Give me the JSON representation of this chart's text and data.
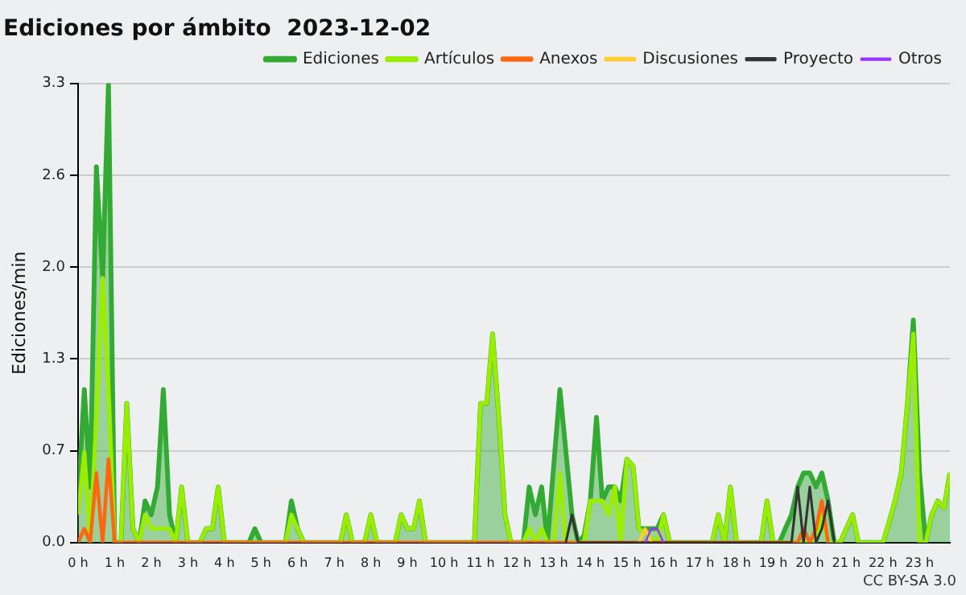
{
  "chart_data": {
    "type": "line",
    "title": "Ediciones por ámbito  2023-12-02",
    "ylabel": "Ediciones/min",
    "xlim": [
      0,
      23.83
    ],
    "xticks": [
      {
        "value": 0,
        "label": "0 h"
      },
      {
        "value": 1,
        "label": "1 h"
      },
      {
        "value": 2,
        "label": "2 h"
      },
      {
        "value": 3,
        "label": "3 h"
      },
      {
        "value": 4,
        "label": "4 h"
      },
      {
        "value": 5,
        "label": "5 h"
      },
      {
        "value": 6,
        "label": "6 h"
      },
      {
        "value": 7,
        "label": "7 h"
      },
      {
        "value": 8,
        "label": "8 h"
      },
      {
        "value": 9,
        "label": "9 h"
      },
      {
        "value": 10,
        "label": "10 h"
      },
      {
        "value": 11,
        "label": "11 h"
      },
      {
        "value": 12,
        "label": "12 h"
      },
      {
        "value": 13,
        "label": "13 h"
      },
      {
        "value": 14,
        "label": "14 h"
      },
      {
        "value": 15,
        "label": "15 h"
      },
      {
        "value": 16,
        "label": "16 h"
      },
      {
        "value": 17,
        "label": "17 h"
      },
      {
        "value": 18,
        "label": "18 h"
      },
      {
        "value": 19,
        "label": "19 h"
      },
      {
        "value": 20,
        "label": "20 h"
      },
      {
        "value": 21,
        "label": "21 h"
      },
      {
        "value": 22,
        "label": "22 h"
      },
      {
        "value": 23,
        "label": "23 h"
      }
    ],
    "ylim": [
      0,
      3.3
    ],
    "yticks": [
      {
        "value": 0,
        "label": "0.0"
      },
      {
        "value": 0.66,
        "label": "0.7"
      },
      {
        "value": 1.32,
        "label": "1.3"
      },
      {
        "value": 1.98,
        "label": "2.0"
      },
      {
        "value": 2.64,
        "label": "2.6"
      },
      3.3
    ],
    "grid": "y",
    "legend": "top right",
    "marker": "none",
    "line_style": "solid",
    "annotations": [
      "CC BY-SA 3.0"
    ],
    "series": [
      {
        "name": "Ediciones",
        "type": "area",
        "color": "#33aa33",
        "x": [
          0,
          0.17,
          0.33,
          0.5,
          0.67,
          0.83,
          1.0,
          1.17,
          1.33,
          1.5,
          1.67,
          1.83,
          2.0,
          2.17,
          2.33,
          2.5,
          2.67,
          2.83,
          3.0,
          3.33,
          3.5,
          3.67,
          3.83,
          4.0,
          4.67,
          4.83,
          5.0,
          5.67,
          5.83,
          6.0,
          6.17,
          7.17,
          7.33,
          7.5,
          7.83,
          8.0,
          8.17,
          8.67,
          8.83,
          9.0,
          9.17,
          9.33,
          9.5,
          10.83,
          11.0,
          11.17,
          11.33,
          11.5,
          11.67,
          11.83,
          12.17,
          12.33,
          12.5,
          12.67,
          12.83,
          13.17,
          13.5,
          13.67,
          13.83,
          14.0,
          14.17,
          14.33,
          14.5,
          14.67,
          14.83,
          15.0,
          15.17,
          15.33,
          15.5,
          15.67,
          15.83,
          16.0,
          16.17,
          17.33,
          17.5,
          17.67,
          17.83,
          18.0,
          18.67,
          18.83,
          19.0,
          19.17,
          19.33,
          19.5,
          19.67,
          19.83,
          20.0,
          20.17,
          20.33,
          20.5,
          20.67,
          20.83,
          21.0,
          21.17,
          21.33,
          22.0,
          22.17,
          22.33,
          22.5,
          22.67,
          22.83,
          23.0,
          23.17,
          23.33,
          23.5,
          23.67,
          23.83
        ],
        "values": [
          0.3,
          1.1,
          0.4,
          2.7,
          1.9,
          3.3,
          0,
          0,
          1.0,
          0.1,
          0,
          0.3,
          0.2,
          0.4,
          1.1,
          0.2,
          0,
          0.4,
          0,
          0,
          0.1,
          0.1,
          0.4,
          0,
          0,
          0.1,
          0,
          0,
          0.3,
          0.1,
          0,
          0,
          0.2,
          0,
          0,
          0.2,
          0,
          0,
          0.2,
          0.1,
          0.1,
          0.3,
          0,
          0,
          1.0,
          1.0,
          1.5,
          0.9,
          0.2,
          0,
          0,
          0.4,
          0.2,
          0.4,
          0,
          1.1,
          0.2,
          0,
          0.05,
          0.3,
          0.9,
          0.3,
          0.4,
          0.4,
          0.3,
          0.6,
          0.55,
          0.1,
          0.1,
          0.1,
          0.1,
          0.2,
          0,
          0,
          0.2,
          0,
          0.4,
          0,
          0,
          0.3,
          0,
          0,
          0.1,
          0.2,
          0.4,
          0.5,
          0.5,
          0.4,
          0.5,
          0.3,
          0,
          0,
          0.1,
          0.2,
          0,
          0,
          0.15,
          0.3,
          0.5,
          1.0,
          1.6,
          0.5,
          0,
          0.2,
          0.3,
          0.25,
          0.5
        ]
      },
      {
        "name": "Artículos",
        "color": "#99ee00",
        "x": [
          0,
          0.17,
          0.33,
          0.5,
          0.67,
          0.83,
          1.0,
          1.17,
          1.33,
          1.5,
          1.67,
          1.83,
          2.0,
          2.33,
          2.5,
          2.67,
          2.83,
          3.0,
          3.33,
          3.5,
          3.67,
          3.83,
          4.0,
          5.67,
          5.83,
          6.0,
          6.17,
          7.17,
          7.33,
          7.5,
          7.83,
          8.0,
          8.17,
          8.67,
          8.83,
          9.0,
          9.17,
          9.33,
          9.5,
          10.83,
          11.0,
          11.17,
          11.33,
          11.5,
          11.67,
          11.83,
          12.17,
          12.33,
          12.5,
          12.67,
          12.83,
          13.0,
          13.17,
          13.33,
          13.83,
          14.0,
          14.17,
          14.33,
          14.5,
          14.67,
          14.83,
          15.0,
          15.17,
          15.33,
          15.83,
          16.0,
          16.17,
          17.33,
          17.5,
          17.67,
          17.83,
          18.0,
          18.67,
          18.83,
          19.0,
          20.17,
          20.33,
          20.5,
          20.83,
          21.0,
          21.17,
          21.33,
          22.0,
          22.17,
          22.33,
          22.5,
          22.67,
          22.83,
          23.0,
          23.17,
          23.33,
          23.5,
          23.67,
          23.83
        ],
        "values": [
          0.2,
          0.65,
          0,
          0.9,
          1.9,
          1.1,
          0,
          0,
          1.0,
          0.1,
          0,
          0.2,
          0.1,
          0.1,
          0.1,
          0,
          0.4,
          0,
          0,
          0.1,
          0.1,
          0.4,
          0,
          0,
          0.2,
          0.1,
          0,
          0,
          0.2,
          0,
          0,
          0.2,
          0,
          0,
          0.2,
          0.1,
          0.1,
          0.3,
          0,
          0,
          1.0,
          1.0,
          1.5,
          0.9,
          0.2,
          0,
          0,
          0.1,
          0,
          0.1,
          0,
          0,
          0.5,
          0,
          0,
          0.3,
          0.3,
          0.3,
          0.2,
          0.4,
          0,
          0.6,
          0.55,
          0.1,
          0,
          0.2,
          0,
          0,
          0.2,
          0,
          0.4,
          0,
          0,
          0.3,
          0,
          0,
          0.2,
          0,
          0,
          0.1,
          0.2,
          0,
          0,
          0.15,
          0.3,
          0.5,
          1.0,
          1.5,
          0,
          0,
          0.2,
          0.3,
          0.25,
          0.5
        ]
      },
      {
        "name": "Anexos",
        "color": "#ff6611",
        "x": [
          0,
          0.17,
          0.33,
          0.5,
          0.67,
          0.83,
          1.0,
          19.67,
          19.83,
          20.0,
          20.17,
          20.33,
          20.5
        ],
        "values": [
          0,
          0.1,
          0,
          0.5,
          0,
          0.6,
          0,
          0,
          0.1,
          0,
          0.1,
          0.3,
          0
        ]
      },
      {
        "name": "Discusiones",
        "color": "#ffcc33",
        "x": [
          15.33,
          15.5,
          15.67
        ],
        "values": [
          0,
          0.1,
          0
        ]
      },
      {
        "name": "Proyecto",
        "color": "#333333",
        "x": [
          13.33,
          13.5,
          13.67,
          19.5,
          19.67,
          19.83,
          20.0,
          20.17,
          20.33,
          20.5,
          20.67
        ],
        "values": [
          0,
          0.2,
          0,
          0,
          0.4,
          0,
          0.4,
          0,
          0.1,
          0.3,
          0
        ]
      },
      {
        "name": "Otros",
        "color": "#9933ff",
        "x": [
          15.5,
          15.67,
          15.83,
          16.0
        ],
        "values": [
          0,
          0.1,
          0.1,
          0
        ]
      }
    ]
  }
}
